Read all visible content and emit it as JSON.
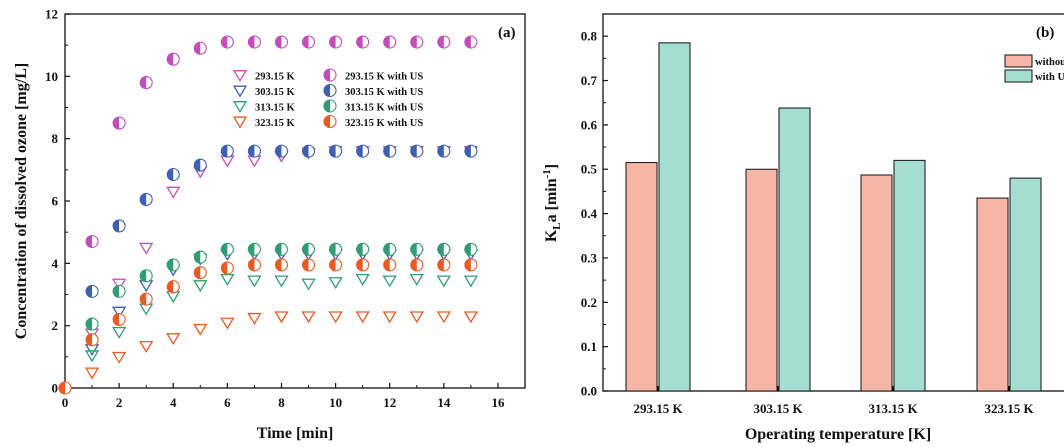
{
  "chart_data": [
    {
      "type": "scatter",
      "panel_label": "(a)",
      "xlabel": "Time [min]",
      "ylabel": "Concentration of dissolved ozone [mg/L]",
      "xlim": [
        0,
        17
      ],
      "ylim": [
        0,
        12
      ],
      "xticks": [
        "0",
        "2",
        "4",
        "6",
        "8",
        "10",
        "12",
        "14",
        "16"
      ],
      "yticks": [
        "0",
        "2",
        "4",
        "6",
        "8",
        "10",
        "12"
      ],
      "legend_position": "center-right",
      "series": [
        {
          "name": "293.15 K",
          "marker": "triangle-down",
          "color": "#c44dbb",
          "x": [
            1,
            2,
            3,
            4,
            5,
            6,
            7,
            8,
            9,
            10,
            11,
            12,
            13,
            14,
            15
          ],
          "y": [
            1.75,
            3.35,
            4.5,
            6.3,
            6.95,
            7.3,
            7.3,
            7.45,
            7.55,
            7.6,
            7.6,
            7.6,
            7.6,
            7.6,
            7.6
          ]
        },
        {
          "name": "303.15 K",
          "marker": "triangle-down",
          "color": "#3f5fb0",
          "x": [
            1,
            2,
            3,
            4,
            5,
            6,
            7,
            8,
            9,
            10,
            11,
            12,
            13,
            14,
            15
          ],
          "y": [
            1.25,
            2.45,
            3.3,
            3.8,
            4.15,
            4.3,
            4.3,
            4.3,
            4.3,
            4.3,
            4.3,
            4.3,
            4.3,
            4.3,
            4.3
          ]
        },
        {
          "name": "313.15 K",
          "marker": "triangle-down",
          "color": "#2e9e72",
          "x": [
            1,
            2,
            3,
            4,
            5,
            6,
            7,
            8,
            9,
            10,
            11,
            12,
            13,
            14,
            15
          ],
          "y": [
            1.05,
            1.8,
            2.55,
            2.95,
            3.3,
            3.5,
            3.45,
            3.45,
            3.35,
            3.4,
            3.5,
            3.45,
            3.5,
            3.45,
            3.45
          ]
        },
        {
          "name": "323.15 K",
          "marker": "triangle-down",
          "color": "#ec5a23",
          "x": [
            1,
            2,
            3,
            4,
            5,
            6,
            7,
            8,
            9,
            10,
            11,
            12,
            13,
            14,
            15
          ],
          "y": [
            0.5,
            1.0,
            1.35,
            1.6,
            1.9,
            2.1,
            2.25,
            2.3,
            2.3,
            2.3,
            2.3,
            2.3,
            2.3,
            2.3,
            2.3
          ]
        },
        {
          "name": "293.15 K with US",
          "marker": "half-circle",
          "color": "#c44dbb",
          "x": [
            1,
            2,
            3,
            4,
            5,
            6,
            7,
            8,
            9,
            10,
            11,
            12,
            13,
            14,
            15
          ],
          "y": [
            4.7,
            8.5,
            9.8,
            10.55,
            10.9,
            11.1,
            11.1,
            11.1,
            11.1,
            11.1,
            11.1,
            11.1,
            11.1,
            11.1,
            11.1
          ]
        },
        {
          "name": "303.15 K with US",
          "marker": "half-circle",
          "color": "#3f5fb0",
          "x": [
            1,
            2,
            3,
            4,
            5,
            6,
            7,
            8,
            9,
            10,
            11,
            12,
            13,
            14,
            15
          ],
          "y": [
            3.1,
            5.2,
            6.05,
            6.85,
            7.15,
            7.6,
            7.6,
            7.6,
            7.6,
            7.6,
            7.6,
            7.6,
            7.6,
            7.6,
            7.6
          ]
        },
        {
          "name": "313.15 K with US",
          "marker": "half-circle",
          "color": "#2e9e72",
          "x": [
            1,
            2,
            3,
            4,
            5,
            6,
            7,
            8,
            9,
            10,
            11,
            12,
            13,
            14,
            15
          ],
          "y": [
            2.05,
            3.1,
            3.6,
            3.95,
            4.2,
            4.45,
            4.45,
            4.45,
            4.45,
            4.45,
            4.45,
            4.45,
            4.45,
            4.45,
            4.45
          ]
        },
        {
          "name": "323.15 K with US",
          "marker": "half-circle",
          "color": "#ec5a23",
          "x": [
            0,
            1,
            2,
            3,
            4,
            5,
            6,
            7,
            8,
            9,
            10,
            11,
            12,
            13,
            14,
            15
          ],
          "y": [
            0,
            1.55,
            2.2,
            2.85,
            3.25,
            3.7,
            3.85,
            3.95,
            3.95,
            3.95,
            3.95,
            3.95,
            3.95,
            3.95,
            3.95,
            3.95
          ]
        }
      ]
    },
    {
      "type": "bar",
      "panel_label": "(b)",
      "xlabel": "Operating temperature [K]",
      "ylabel": "K",
      "ylabel_sub": "L",
      "ylabel_rest": "a [min",
      "ylabel_sup": "-1",
      "ylabel_end": "]",
      "ylim": [
        0,
        0.85
      ],
      "yticks": [
        "0.0",
        "0.1",
        "0.2",
        "0.3",
        "0.4",
        "0.5",
        "0.6",
        "0.7",
        "0.8"
      ],
      "categories": [
        "293.15 K",
        "303.15 K",
        "313.15 K",
        "323.15 K"
      ],
      "legend_position": "top-right",
      "series": [
        {
          "name": "without US",
          "color": "#f7b5a6",
          "values": [
            0.515,
            0.5,
            0.487,
            0.435
          ]
        },
        {
          "name": "with US",
          "color": "#a6ddd2",
          "values": [
            0.785,
            0.638,
            0.52,
            0.48
          ]
        }
      ]
    }
  ]
}
